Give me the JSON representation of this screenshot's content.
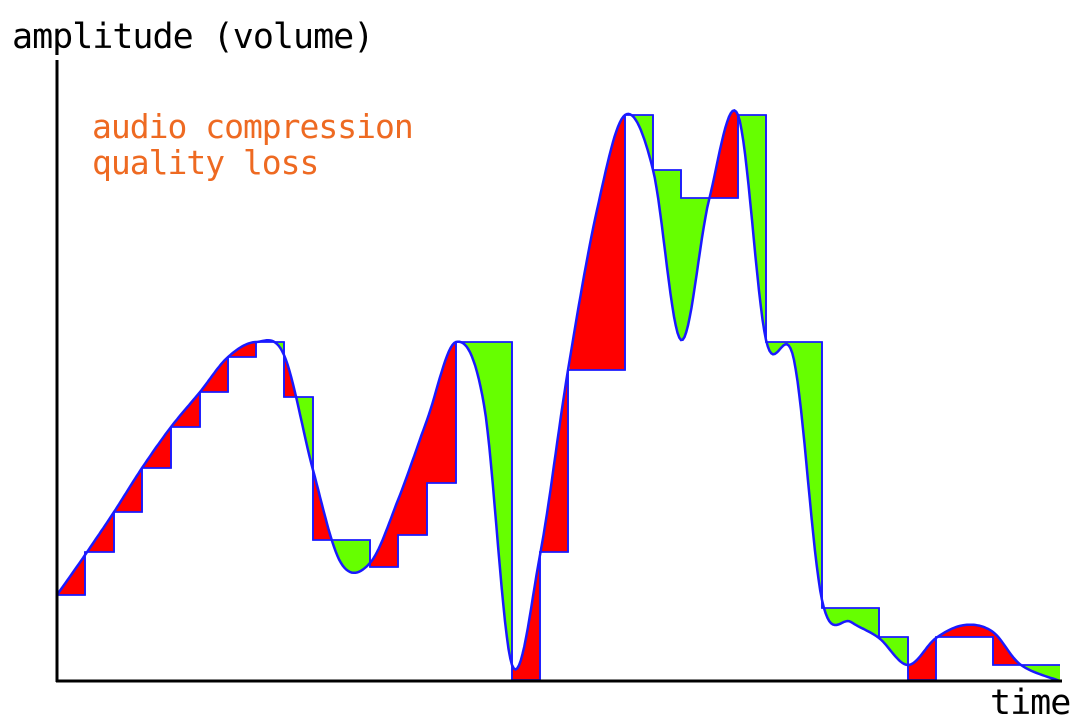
{
  "labels": {
    "y_axis": "amplitude (volume)",
    "x_axis": "time",
    "annotation_line1": "audio compression",
    "annotation_line2": "quality loss"
  },
  "colors": {
    "signal": "#1a1aff",
    "loss_above": "#ff0000",
    "loss_below": "#66ff00",
    "annotation": "#ee6a22",
    "axis": "#000000"
  }
}
